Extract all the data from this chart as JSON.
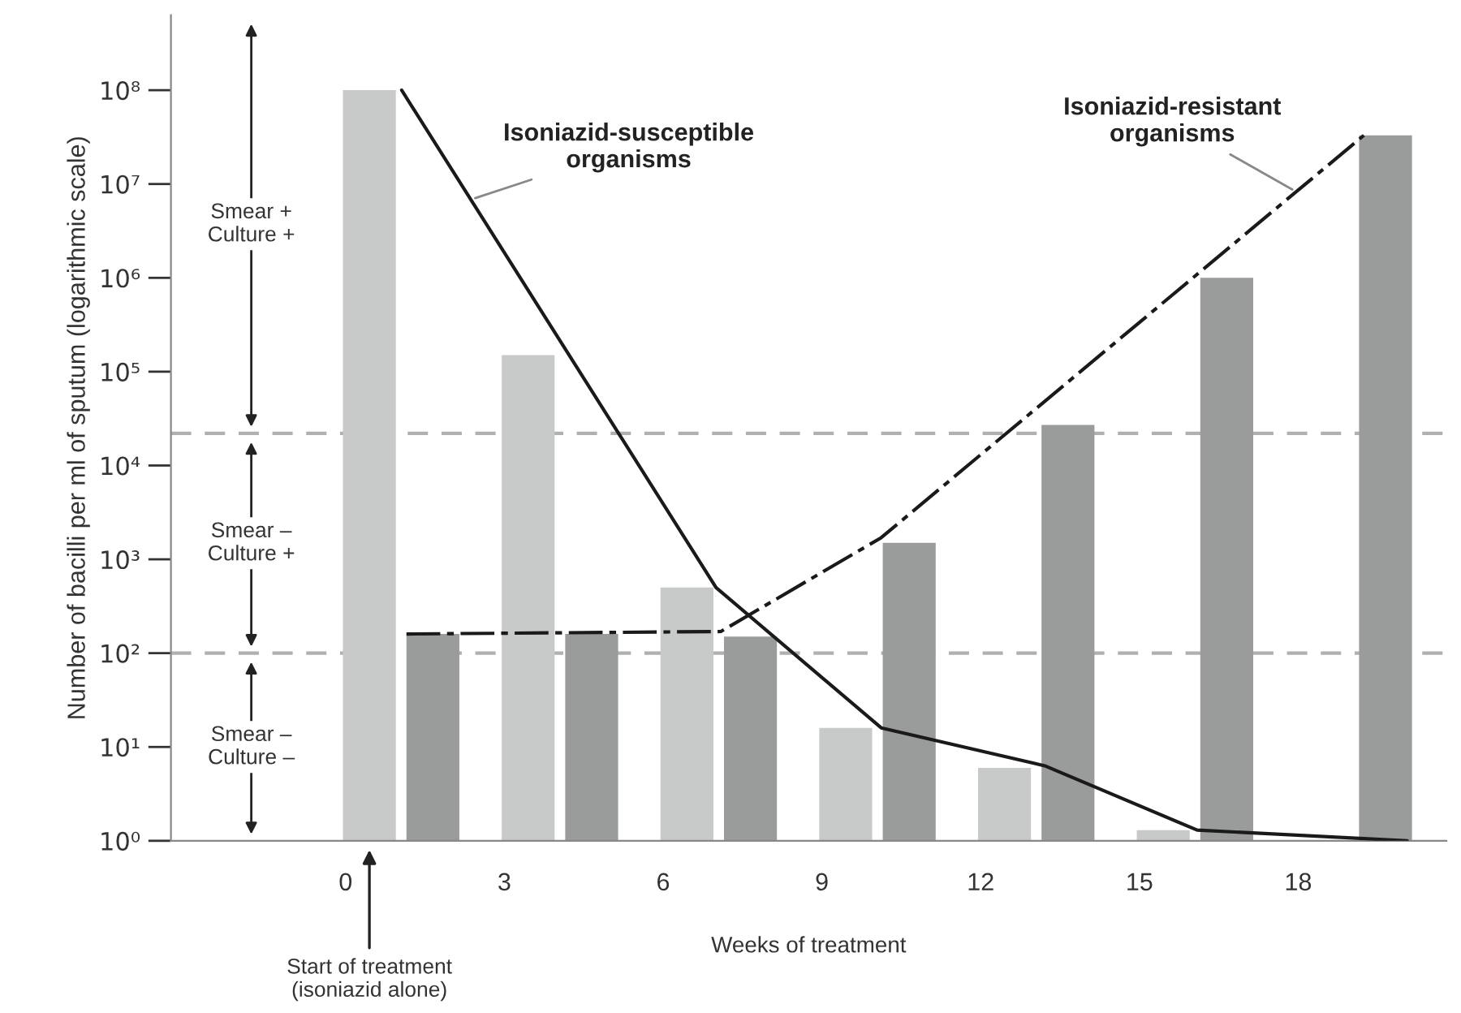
{
  "chart_data": {
    "type": "bar",
    "xlabel": "Weeks of treatment",
    "ylabel": "Number of bacilli per ml of sputum (logarithmic scale)",
    "log": "y",
    "xlim": [
      -3.3,
      20.8
    ],
    "xticks": [
      0,
      3,
      6,
      9,
      12,
      15,
      18
    ],
    "ylim": [
      1,
      630000000
    ],
    "yticks": [
      {
        "value": 1,
        "label": "10⁰"
      },
      {
        "value": 10,
        "label": "10¹"
      },
      {
        "value": 100,
        "label": "10²"
      },
      {
        "value": 1000,
        "label": "10³"
      },
      {
        "value": 10000,
        "label": "10⁴"
      },
      {
        "value": 100000,
        "label": "10⁵"
      },
      {
        "value": 1000000,
        "label": "10⁶"
      },
      {
        "value": 10000000,
        "label": "10⁷"
      },
      {
        "value": 100000000,
        "label": "10⁸"
      }
    ],
    "grid": false,
    "legend": false,
    "series": [
      {
        "color": "#c8cac9",
        "x": [
          0.45,
          3.45,
          6.45,
          9.45,
          12.45,
          15.45
        ],
        "values": [
          100000000,
          150000,
          500,
          16,
          6,
          1.3
        ]
      },
      {
        "color": "#9a9c9b",
        "x": [
          1.65,
          4.65,
          7.65,
          10.65,
          13.65,
          16.65,
          19.65
        ],
        "values": [
          160,
          160,
          150,
          1500,
          27000,
          1000000,
          33000000
        ]
      },
      {
        "type": "line",
        "name": "Isoniazid-susceptible organisms",
        "color": "#1a1a1a",
        "line_style": "solid",
        "x": [
          1.06,
          7.0,
          10.12,
          13.21,
          16.09,
          20.06
        ],
        "values": [
          100000000,
          500,
          16,
          6.3,
          1.3,
          1
        ]
      },
      {
        "type": "line",
        "name": "Isoniazid-resistant organisms",
        "color": "#1a1a1a",
        "line_style": "dashed",
        "x": [
          1.15,
          7.09,
          10.12,
          19.24
        ],
        "values": [
          160,
          170,
          1700,
          33000000
        ]
      }
    ],
    "ref_lines": [
      {
        "axis": "y",
        "value": 22000,
        "color": "#b0b0b0",
        "line_style": "dashed"
      },
      {
        "axis": "y",
        "value": 100,
        "color": "#b0b0b0",
        "line_style": "dashed"
      }
    ],
    "annotations": [
      "Smear +\nCulture +",
      "Smear –\nCulture +",
      "Smear –\nCulture –",
      "Start of treatment\n(isoniazid alone)"
    ]
  }
}
